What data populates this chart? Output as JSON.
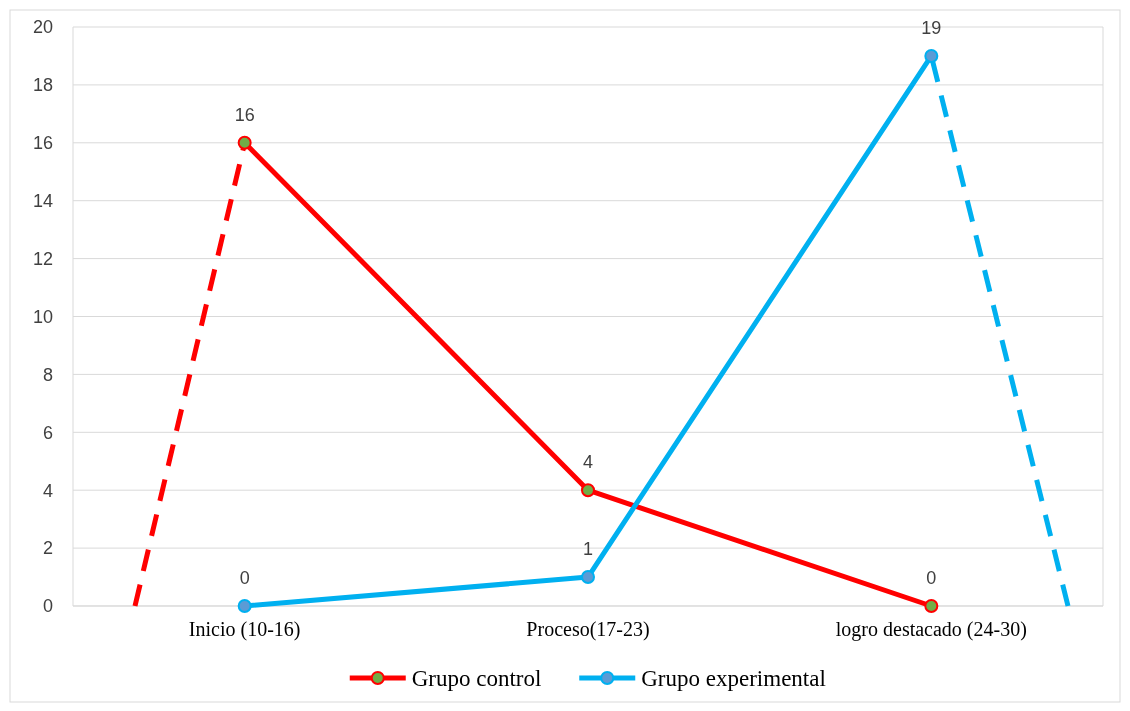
{
  "chart_data": {
    "type": "line",
    "categories": [
      "Inicio (10-16)",
      "Proceso(17-23)",
      "logro destacado (24-30)"
    ],
    "series": [
      {
        "name": "Grupo control",
        "color": "#ff0000",
        "values": [
          16,
          4,
          0
        ]
      },
      {
        "name": "Grupo experimental",
        "color": "#00b0f0",
        "values": [
          0,
          1,
          19
        ]
      }
    ],
    "ylim": [
      0,
      20
    ],
    "yticks": [
      0,
      2,
      4,
      6,
      8,
      10,
      12,
      14,
      16,
      18,
      20
    ],
    "grid": "y",
    "legend": "bottom",
    "marker": "circle",
    "line_style": "solid",
    "data_labels": true
  }
}
